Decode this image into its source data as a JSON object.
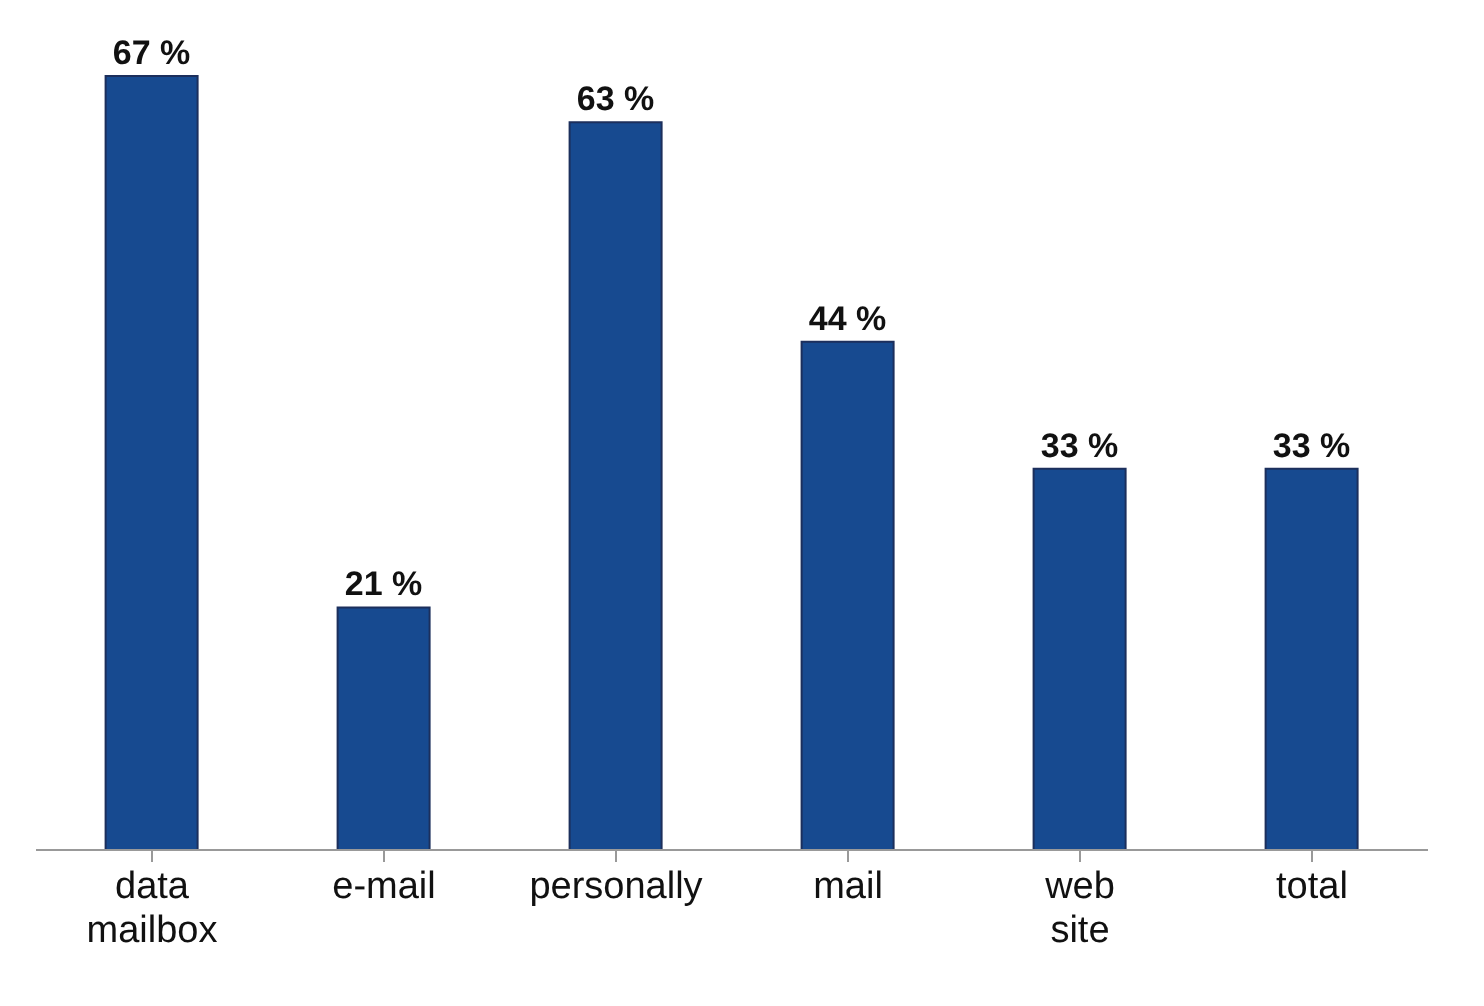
{
  "chart_data": {
    "type": "bar",
    "categories": [
      "data mailbox",
      "e-mail",
      "personally",
      "mail",
      "web site",
      "total"
    ],
    "values": [
      67,
      21,
      63,
      44,
      33,
      33
    ],
    "color": "#174a90",
    "value_labels": [
      "67 %",
      "21 %",
      "63 %",
      "44 %",
      "33 %",
      "33 %"
    ]
  }
}
